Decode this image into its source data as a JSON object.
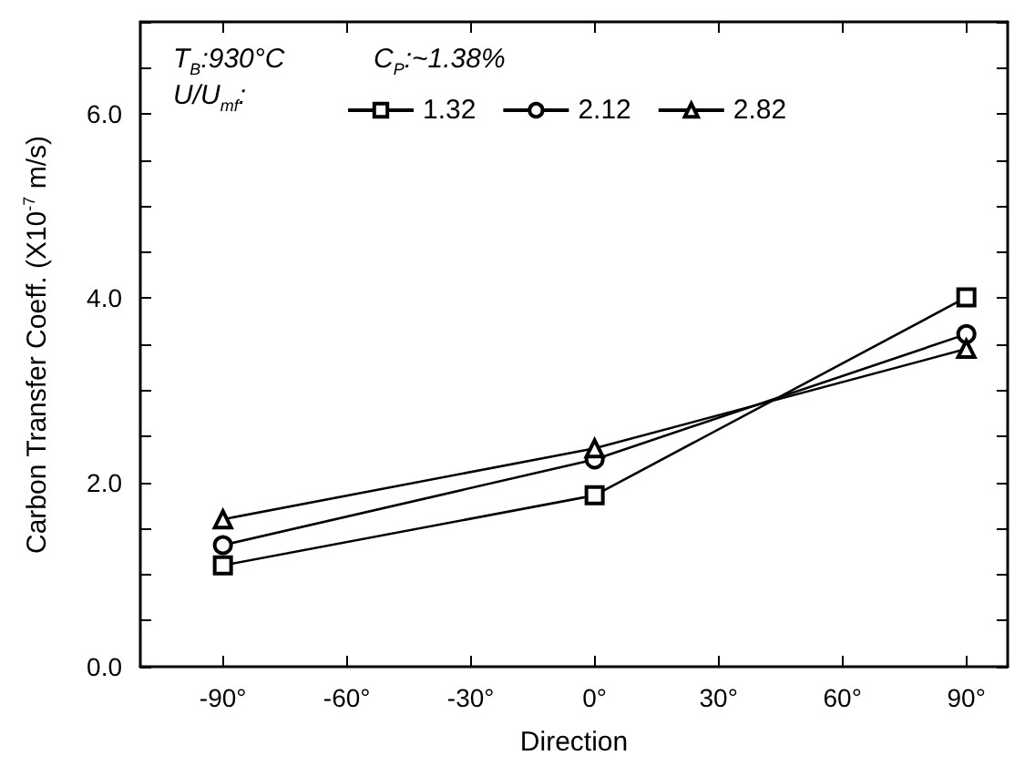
{
  "chart_data": {
    "type": "line",
    "xlabel": "Direction",
    "ylabel": "Carbon Transfer Coeff. (X10$^{-7}$ m/s)",
    "legend_title": "U/U$_{mf}$:",
    "annotations": [
      "T$_{B}$:930°C",
      "C$_{P}$:~1.38%"
    ],
    "x": [
      -90,
      0,
      90
    ],
    "series": [
      {
        "name": "1.32",
        "color": "#000000",
        "marker": "square",
        "values": [
          1.1,
          1.86,
          4.01
        ]
      },
      {
        "name": "2.12",
        "color": "#000000",
        "marker": "circle",
        "values": [
          1.32,
          2.25,
          3.61
        ]
      },
      {
        "name": "2.82",
        "color": "#000000",
        "marker": "triangle",
        "values": [
          1.6,
          2.37,
          3.45
        ]
      }
    ],
    "xlim": [
      -110,
      100
    ],
    "xticks": [
      {
        "value": -90,
        "label": "-90°"
      },
      {
        "value": -60,
        "label": "-60°"
      },
      {
        "value": -30,
        "label": "-30°"
      },
      {
        "value": 0,
        "label": "0°"
      },
      {
        "value": 30,
        "label": "30°"
      },
      {
        "value": 60,
        "label": "60°"
      },
      {
        "value": 90,
        "label": "90°"
      }
    ],
    "ylim": [
      0,
      7
    ],
    "yticks": [
      {
        "value": 0,
        "label": "0.0"
      },
      {
        "value": 2,
        "label": "2.0"
      },
      {
        "value": 4,
        "label": "4.0"
      },
      {
        "value": 6,
        "label": "6.0"
      }
    ],
    "grid": false,
    "legend": "top left",
    "line_style": "solid"
  }
}
